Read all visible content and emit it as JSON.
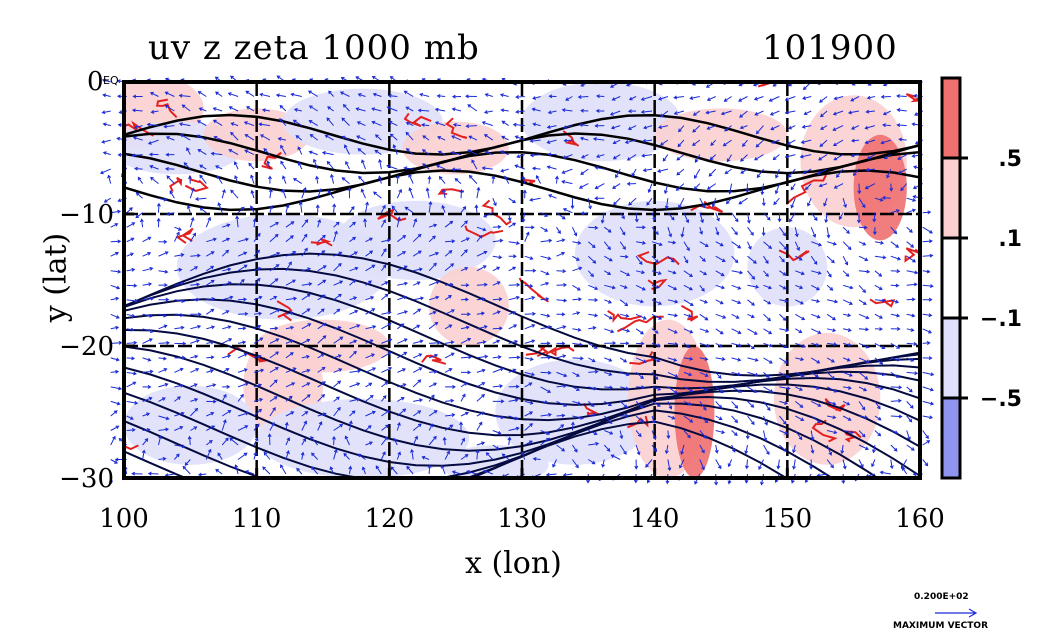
{
  "chart_data": {
    "type": "heatmap",
    "title_left": "uv  z  zeta  1000  mb",
    "title_right": "101900",
    "xlabel": "x  (lon)",
    "ylabel": "y  (lat)",
    "xlim": [
      100,
      160
    ],
    "ylim": [
      -30,
      0
    ],
    "x_ticks": [
      100,
      110,
      120,
      130,
      140,
      150,
      160
    ],
    "y_ticks": [
      0,
      -10,
      -20,
      -30
    ],
    "y_tick_labels": [
      "0 EQ",
      "−10",
      "−20",
      "−30"
    ],
    "grid": true,
    "colorbar": {
      "levels": [
        -0.5,
        -0.1,
        0.1,
        0.5
      ],
      "labels": [
        ".5",
        ".1",
        "−.1",
        "−.5"
      ],
      "colors": [
        "#f07070",
        "#fbd0d0",
        "#ffffff",
        "#dfe0fb",
        "#8f94ee"
      ]
    },
    "vector_legend": {
      "magnitude_label": "0.200E+02",
      "caption": "MAXIMUM  VECTOR"
    },
    "layers": [
      "wind vectors (blue)",
      "height contours (black)",
      "vorticity shading (red/blue)"
    ]
  },
  "colors": {
    "vector": "#1a2bd6",
    "contour": "#050a40",
    "positive": "#f07070",
    "positive_light": "#fbd0d0",
    "negative_light": "#dfe0fb",
    "negative": "#8f94ee"
  }
}
